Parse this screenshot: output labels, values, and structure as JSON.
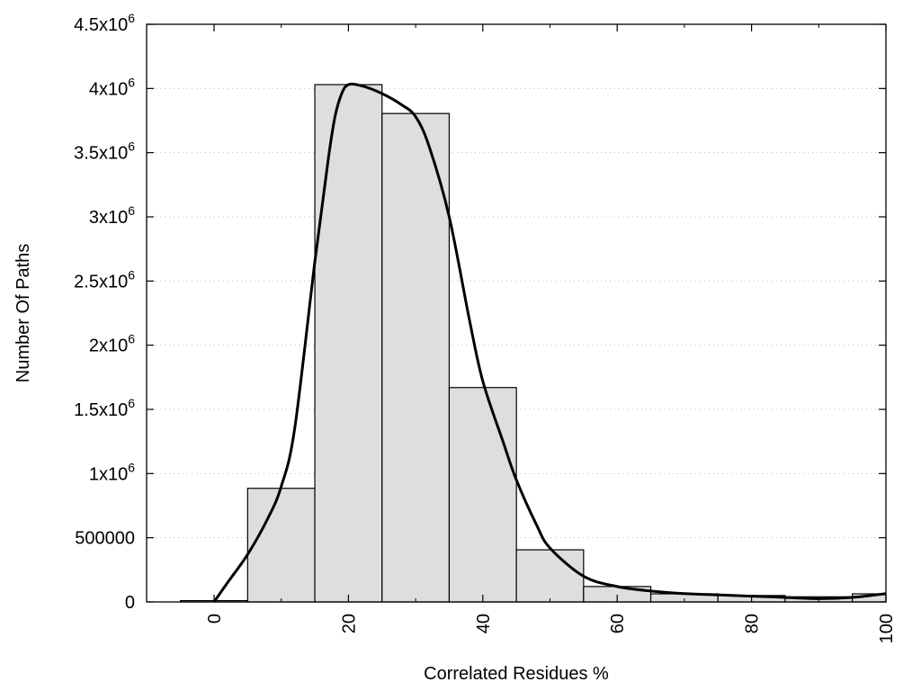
{
  "chart_data": {
    "type": "bar",
    "title": "",
    "xlabel": "Correlated Residues %",
    "ylabel": "Number Of Paths",
    "xlim": [
      -10,
      100
    ],
    "ylim": [
      0,
      4500000
    ],
    "grid": "horizontal-dotted",
    "bar_width": 10,
    "categories": [
      0,
      10,
      20,
      30,
      40,
      50,
      60,
      70,
      80,
      90,
      100
    ],
    "values": [
      10000,
      885000,
      4030000,
      3805000,
      1670000,
      406000,
      120000,
      63000,
      50000,
      40000,
      63000
    ],
    "bar_color": "#dedede",
    "curve": {
      "x": [
        0,
        2,
        5,
        8,
        10,
        12,
        15,
        17,
        18,
        19,
        20,
        22,
        25,
        28,
        30,
        32,
        35,
        38,
        40,
        43,
        45,
        48,
        50,
        55,
        60,
        65,
        70,
        75,
        80,
        85,
        90,
        95,
        100
      ],
      "y": [
        0,
        150000,
        370000,
        650000,
        900000,
        1350000,
        2650000,
        3450000,
        3780000,
        3960000,
        4030000,
        4020000,
        3960000,
        3870000,
        3780000,
        3550000,
        3000000,
        2200000,
        1720000,
        1250000,
        950000,
        600000,
        420000,
        200000,
        120000,
        85000,
        65000,
        55000,
        45000,
        35000,
        25000,
        35000,
        65000
      ],
      "color": "#000000"
    },
    "xticks": [
      0,
      20,
      40,
      60,
      80,
      100
    ],
    "xtick_labels": [
      "0",
      "20",
      "40",
      "60",
      "80",
      "100"
    ],
    "xminor_ticks": [
      10,
      30,
      50,
      70,
      90
    ],
    "yticks": [
      0,
      500000,
      1000000,
      1500000,
      2000000,
      2500000,
      3000000,
      3500000,
      4000000,
      4500000
    ],
    "ytick_labels": [
      {
        "base": "0",
        "exp": ""
      },
      {
        "base": "500000",
        "exp": ""
      },
      {
        "base": "1x10",
        "exp": "6"
      },
      {
        "base": "1.5x10",
        "exp": "6"
      },
      {
        "base": "2x10",
        "exp": "6"
      },
      {
        "base": "2.5x10",
        "exp": "6"
      },
      {
        "base": "3x10",
        "exp": "6"
      },
      {
        "base": "3.5x10",
        "exp": "6"
      },
      {
        "base": "4x10",
        "exp": "6"
      },
      {
        "base": "4.5x10",
        "exp": "6"
      }
    ]
  }
}
